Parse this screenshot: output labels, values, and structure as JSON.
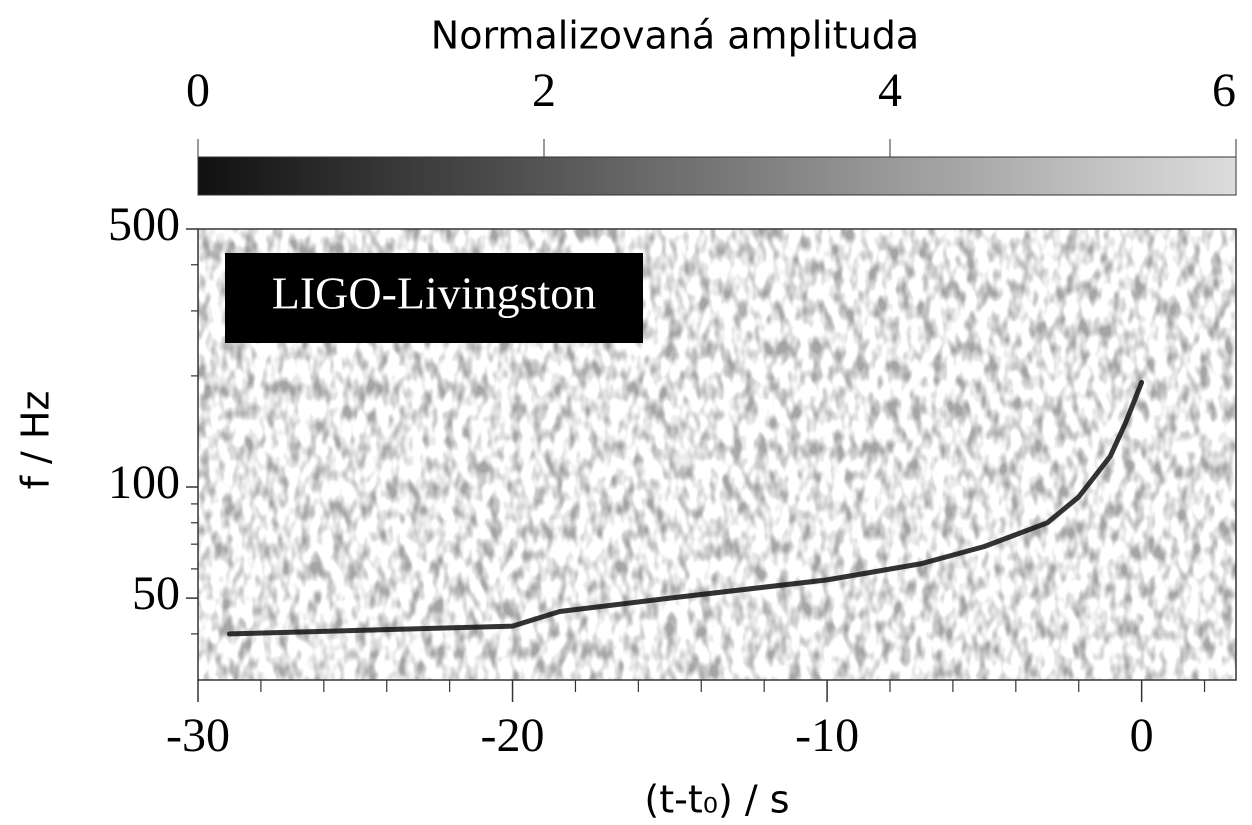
{
  "chart_data": {
    "type": "spectrogram",
    "colorbar_label": "Normalizovaná amplituda",
    "clim": [
      0,
      6
    ],
    "cticks": [
      0,
      2,
      4,
      6
    ],
    "colormap": [
      "#111111",
      "#dddddd"
    ],
    "annotation": "LIGO-Livingston",
    "xlabel": "(t-t₀) / s",
    "ylabel": "f / Hz",
    "xlim": [
      -30,
      3
    ],
    "xticks": [
      -30,
      -20,
      -10,
      0
    ],
    "xminorticks": [
      -28,
      -26,
      -24,
      -22,
      -18,
      -16,
      -14,
      -12,
      -8,
      -6,
      -4,
      -2,
      2
    ],
    "ylim": [
      30,
      500
    ],
    "yticks": [
      50,
      100,
      500
    ],
    "yminorticks": [
      40,
      60,
      70,
      80,
      90,
      200,
      300,
      400
    ],
    "ylog": true,
    "series": [
      {
        "color": "#111111",
        "x": [
          -29,
          -20,
          -18.5,
          -15,
          -10,
          -7,
          -5,
          -3,
          -2,
          -1,
          -0.5,
          0
        ],
        "values": [
          40,
          42,
          46,
          50,
          56,
          62,
          69,
          80,
          94,
          121,
          150,
          192
        ]
      }
    ]
  }
}
